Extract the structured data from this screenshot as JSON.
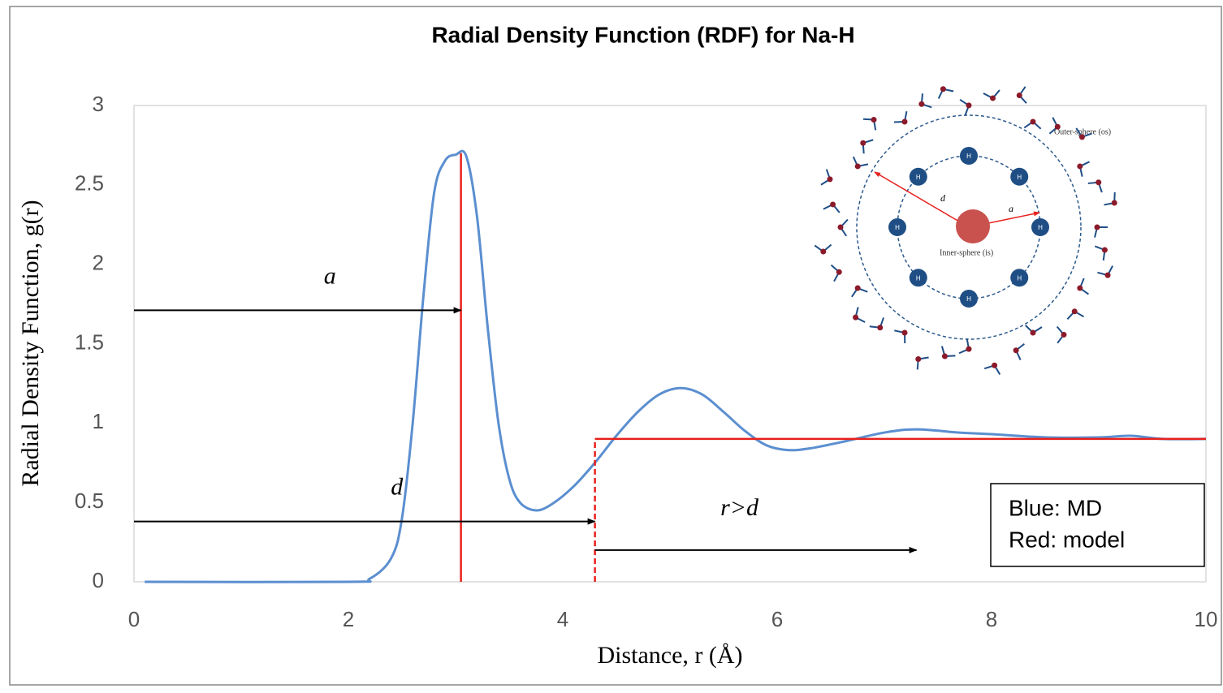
{
  "chart_data": {
    "type": "line",
    "title": "Radial Density Function (RDF) for Na-H",
    "x_label": "Distance, r (Å)",
    "y_label": "Radial Density Function, g(r)",
    "xlim": [
      0,
      10
    ],
    "xticks": [
      0,
      2,
      4,
      6,
      8,
      10
    ],
    "ylim": [
      0,
      3
    ],
    "yticks": [
      0,
      0.5,
      1,
      1.5,
      2,
      2.5,
      3
    ],
    "series": [
      {
        "color": "#5b8fd0",
        "dash": false,
        "x": [
          0.1,
          2.0,
          2.2,
          2.4,
          2.5,
          2.6,
          2.7,
          2.8,
          2.9,
          3.0,
          3.1,
          3.2,
          3.3,
          3.4,
          3.5,
          3.6,
          3.75,
          3.9,
          4.1,
          4.3,
          4.5,
          4.7,
          4.9,
          5.1,
          5.3,
          5.5,
          5.7,
          5.9,
          6.1,
          6.3,
          6.6,
          7.0,
          7.3,
          7.7,
          8.0,
          8.5,
          9.0,
          9.3,
          9.6,
          10
        ],
        "values": [
          0,
          0,
          0.02,
          0.15,
          0.4,
          1.0,
          1.8,
          2.45,
          2.65,
          2.69,
          2.68,
          2.3,
          1.6,
          1.0,
          0.65,
          0.5,
          0.45,
          0.49,
          0.6,
          0.75,
          0.92,
          1.07,
          1.18,
          1.22,
          1.18,
          1.07,
          0.95,
          0.86,
          0.83,
          0.84,
          0.88,
          0.94,
          0.96,
          0.94,
          0.93,
          0.91,
          0.91,
          0.92,
          0.9,
          0.9
        ]
      },
      {
        "color": "#e8201c",
        "dash": false,
        "x": [
          3.05,
          3.05
        ],
        "values": [
          0,
          2.7
        ]
      },
      {
        "color": "#e8201c",
        "dash": true,
        "x": [
          4.3,
          4.3
        ],
        "values": [
          0,
          0.9
        ]
      },
      {
        "color": "#e8201c",
        "dash": false,
        "x": [
          4.3,
          10
        ],
        "values": [
          0.9,
          0.9
        ]
      }
    ],
    "arrows": [
      {
        "label": "a",
        "x": [
          0,
          3.05
        ],
        "y": 1.71
      },
      {
        "label": "d",
        "x": [
          0,
          4.3
        ],
        "y": 0.38
      },
      {
        "label": "r>d",
        "x": [
          4.3,
          7.3
        ],
        "y": 0.2
      }
    ],
    "legend_text": [
      "Blue: MD",
      "Red: model"
    ],
    "inset": {
      "outer_label": "Outer-sphere (os)",
      "inner_label": "Inner-sphere (is)",
      "atom_label": "H",
      "d_label": "d",
      "a_label": "a"
    }
  }
}
